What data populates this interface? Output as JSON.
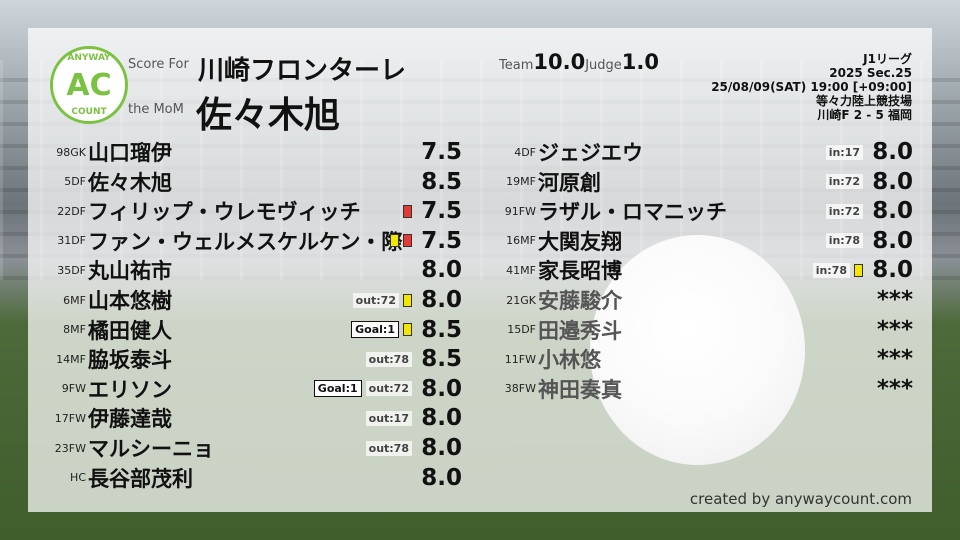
{
  "header": {
    "logo_top": "ANYWAY",
    "logo_mid": "AC",
    "logo_bottom": "COUNT",
    "score_for_label": "Score For",
    "team": "川崎フロンターレ",
    "mom_label": "the MoM",
    "mom": "佐々木旭",
    "team_label": "Team",
    "team_score": "10.0",
    "judge_label": "Judge",
    "judge_score": "1.0"
  },
  "match": {
    "league": "J1リーグ",
    "section": "2025 Sec.25",
    "datetime": "25/08/09(SAT) 19:00 [+09:00]",
    "venue": "等々力陸上競技場",
    "result": "川崎F 2 - 5 福岡"
  },
  "colors": {
    "yellow_card": "#f3e600",
    "red_card": "#e53935",
    "logo": "#7cc242"
  },
  "left_players": [
    {
      "pos": "98GK",
      "name": "山口瑠伊",
      "score": "7.5"
    },
    {
      "pos": "5DF",
      "name": "佐々木旭",
      "score": "8.5"
    },
    {
      "pos": "22DF",
      "name": "フィリップ・ウレモヴィッチ",
      "score": "7.5",
      "cards": [
        "red"
      ]
    },
    {
      "pos": "31DF",
      "name": "ファン・ウェルメスケルケン・際",
      "score": "7.5",
      "cards": [
        "yellow",
        "red"
      ]
    },
    {
      "pos": "35DF",
      "name": "丸山祐市",
      "score": "8.0"
    },
    {
      "pos": "6MF",
      "name": "山本悠樹",
      "score": "8.0",
      "badges": [
        "out:72"
      ],
      "cards": [
        "yellow"
      ]
    },
    {
      "pos": "8MF",
      "name": "橘田健人",
      "score": "8.5",
      "goal": "Goal:1",
      "cards": [
        "yellow"
      ]
    },
    {
      "pos": "14MF",
      "name": "脇坂泰斗",
      "score": "8.5",
      "badges": [
        "out:78"
      ]
    },
    {
      "pos": "9FW",
      "name": "エリソン",
      "score": "8.0",
      "goal": "Goal:1",
      "badges": [
        "out:72"
      ]
    },
    {
      "pos": "17FW",
      "name": "伊藤達哉",
      "score": "8.0",
      "badges": [
        "out:17"
      ]
    },
    {
      "pos": "23FW",
      "name": "マルシーニョ",
      "score": "8.0",
      "badges": [
        "out:78"
      ]
    },
    {
      "pos": "HC",
      "name": "長谷部茂利",
      "score": "8.0"
    }
  ],
  "right_players": [
    {
      "pos": "4DF",
      "name": "ジェジエウ",
      "score": "8.0",
      "badges": [
        "in:17"
      ]
    },
    {
      "pos": "19MF",
      "name": "河原創",
      "score": "8.0",
      "badges": [
        "in:72"
      ]
    },
    {
      "pos": "91FW",
      "name": "ラザル・ロマニッチ",
      "score": "8.0",
      "badges": [
        "in:72"
      ]
    },
    {
      "pos": "16MF",
      "name": "大関友翔",
      "score": "8.0",
      "badges": [
        "in:78"
      ]
    },
    {
      "pos": "41MF",
      "name": "家長昭博",
      "score": "8.0",
      "badges": [
        "in:78"
      ],
      "cards": [
        "yellow"
      ]
    },
    {
      "pos": "21GK",
      "name": "安藤駿介",
      "score": "***",
      "unused": true
    },
    {
      "pos": "15DF",
      "name": "田邉秀斗",
      "score": "***",
      "unused": true
    },
    {
      "pos": "11FW",
      "name": "小林悠",
      "score": "***",
      "unused": true
    },
    {
      "pos": "38FW",
      "name": "神田奏真",
      "score": "***",
      "unused": true
    }
  ],
  "footer": {
    "credit": "created by anywaycount.com"
  }
}
